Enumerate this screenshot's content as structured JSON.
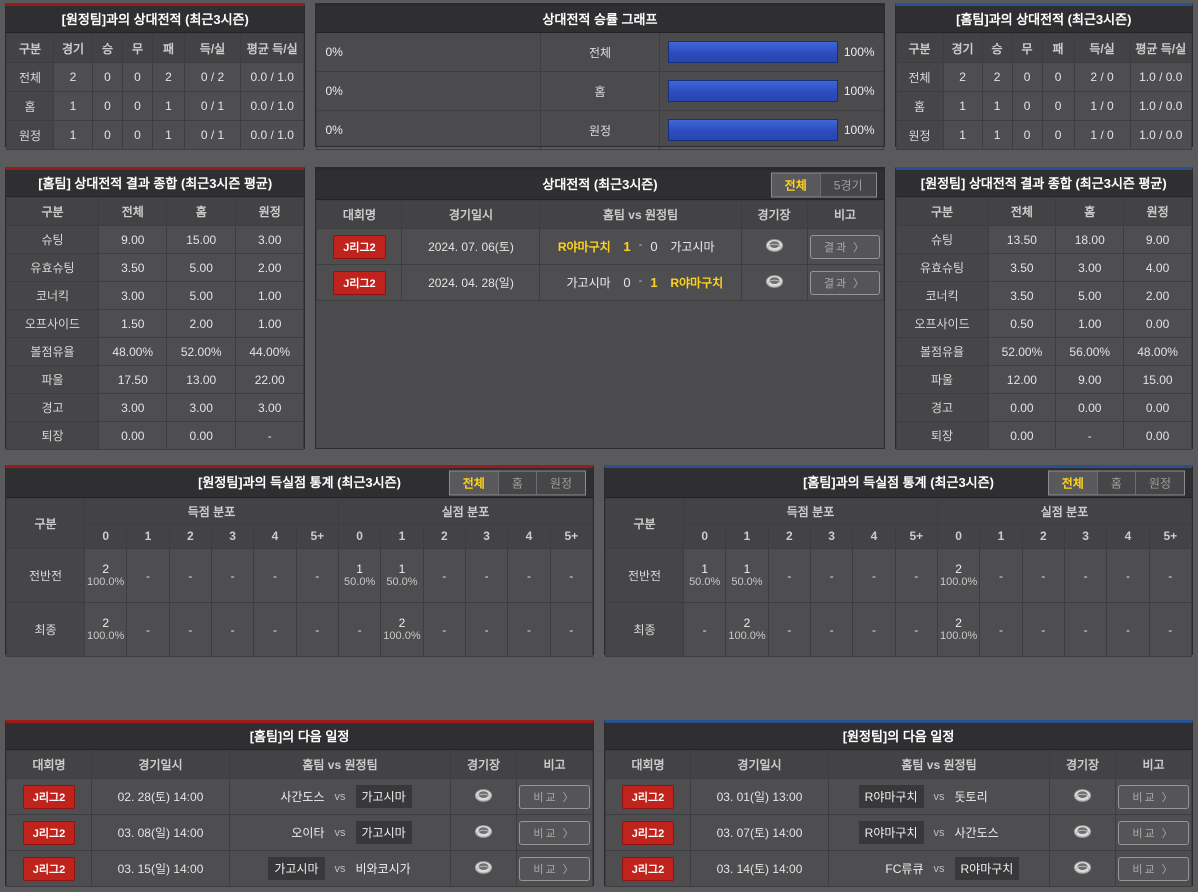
{
  "colors": {
    "accent_red": "#9b1b1b",
    "accent_blue": "#29508f",
    "bar_blue": "#2c4cbe",
    "highlight_yellow": "#ffd21e",
    "badge_red": "#c0231c"
  },
  "record_vs_away": {
    "title": "[원정팀]과의 상대전적 (최근3시즌)",
    "columns": [
      "구분",
      "경기",
      "승",
      "무",
      "패",
      "득/실",
      "평균 득/실"
    ],
    "rows": [
      {
        "label": "전체",
        "values": [
          "2",
          "0",
          "0",
          "2",
          "0 / 2",
          "0.0 / 1.0"
        ]
      },
      {
        "label": "홈",
        "values": [
          "1",
          "0",
          "0",
          "1",
          "0 / 1",
          "0.0 / 1.0"
        ]
      },
      {
        "label": "원정",
        "values": [
          "1",
          "0",
          "0",
          "1",
          "0 / 1",
          "0.0 / 1.0"
        ]
      }
    ]
  },
  "win_graph": {
    "title": "상대전적 승률 그래프",
    "rows": [
      {
        "label": "전체",
        "left_pct": "0%",
        "left_value": 0,
        "right_pct": "100%",
        "right_value": 100
      },
      {
        "label": "홈",
        "left_pct": "0%",
        "left_value": 0,
        "right_pct": "100%",
        "right_value": 100
      },
      {
        "label": "원정",
        "left_pct": "0%",
        "left_value": 0,
        "right_pct": "100%",
        "right_value": 100
      }
    ]
  },
  "record_vs_home": {
    "title": "[홈팀]과의 상대전적 (최근3시즌)",
    "columns": [
      "구분",
      "경기",
      "승",
      "무",
      "패",
      "득/실",
      "평균 득/실"
    ],
    "rows": [
      {
        "label": "전체",
        "values": [
          "2",
          "2",
          "0",
          "0",
          "2 / 0",
          "1.0 / 0.0"
        ]
      },
      {
        "label": "홈",
        "values": [
          "1",
          "1",
          "0",
          "0",
          "1 / 0",
          "1.0 / 0.0"
        ]
      },
      {
        "label": "원정",
        "values": [
          "1",
          "1",
          "0",
          "0",
          "1 / 0",
          "1.0 / 0.0"
        ]
      }
    ]
  },
  "summary_home": {
    "title": "[홈팀] 상대전적 결과 종합 (최근3시즌 평균)",
    "columns": [
      "구분",
      "전체",
      "홈",
      "원정"
    ],
    "rows": [
      {
        "label": "슈팅",
        "values": [
          "9.00",
          "15.00",
          "3.00"
        ]
      },
      {
        "label": "유효슈팅",
        "values": [
          "3.50",
          "5.00",
          "2.00"
        ]
      },
      {
        "label": "코너킥",
        "values": [
          "3.00",
          "5.00",
          "1.00"
        ]
      },
      {
        "label": "오프사이드",
        "values": [
          "1.50",
          "2.00",
          "1.00"
        ]
      },
      {
        "label": "볼점유율",
        "values": [
          "48.00%",
          "52.00%",
          "44.00%"
        ]
      },
      {
        "label": "파울",
        "values": [
          "17.50",
          "13.00",
          "22.00"
        ]
      },
      {
        "label": "경고",
        "values": [
          "3.00",
          "3.00",
          "3.00"
        ]
      },
      {
        "label": "퇴장",
        "values": [
          "0.00",
          "0.00",
          "-"
        ]
      }
    ]
  },
  "match_history": {
    "title": "상대전적 (최근3시즌)",
    "tabs": [
      {
        "label": "전체",
        "name": "all",
        "active": true
      },
      {
        "label": "5경기",
        "name": "5games",
        "active": false
      }
    ],
    "columns": [
      "대회명",
      "경기일시",
      "홈팀  vs  원정팀",
      "경기장",
      "비고"
    ],
    "score_sep": "-",
    "button_label": "결과 〉",
    "rows": [
      {
        "league": "J리그2",
        "date": "2024. 07. 06(토)",
        "home": "R야마구치",
        "home_win": true,
        "score_home": "1",
        "score_away": "0",
        "away": "가고시마",
        "away_win": false
      },
      {
        "league": "J리그2",
        "date": "2024. 04. 28(일)",
        "home": "가고시마",
        "home_win": false,
        "score_home": "0",
        "score_away": "1",
        "away": "R야마구치",
        "away_win": true
      }
    ]
  },
  "summary_away": {
    "title": "[원정팀] 상대전적 결과 종합 (최근3시즌 평균)",
    "columns": [
      "구분",
      "전체",
      "홈",
      "원정"
    ],
    "rows": [
      {
        "label": "슈팅",
        "values": [
          "13.50",
          "18.00",
          "9.00"
        ]
      },
      {
        "label": "유효슈팅",
        "values": [
          "3.50",
          "3.00",
          "4.00"
        ]
      },
      {
        "label": "코너킥",
        "values": [
          "3.50",
          "5.00",
          "2.00"
        ]
      },
      {
        "label": "오프사이드",
        "values": [
          "0.50",
          "1.00",
          "0.00"
        ]
      },
      {
        "label": "볼점유율",
        "values": [
          "52.00%",
          "56.00%",
          "48.00%"
        ]
      },
      {
        "label": "파울",
        "values": [
          "12.00",
          "9.00",
          "15.00"
        ]
      },
      {
        "label": "경고",
        "values": [
          "0.00",
          "0.00",
          "0.00"
        ]
      },
      {
        "label": "퇴장",
        "values": [
          "0.00",
          "-",
          "0.00"
        ]
      }
    ]
  },
  "goal_stats_away": {
    "title": "[원정팀]과의 득실점 통계 (최근3시즌)",
    "tabs": [
      {
        "label": "전체",
        "name": "all",
        "active": true
      },
      {
        "label": "홈",
        "name": "home",
        "active": false
      },
      {
        "label": "원정",
        "name": "away",
        "active": false
      }
    ],
    "group_label": "구분",
    "scored_label": "득점 분포",
    "conceded_label": "실점 분포",
    "bins": [
      "0",
      "1",
      "2",
      "3",
      "4",
      "5+"
    ],
    "rows": [
      {
        "label": "전반전",
        "scored": [
          {
            "n": "2",
            "pct": "100.0%"
          },
          null,
          null,
          null,
          null,
          null
        ],
        "conceded": [
          {
            "n": "1",
            "pct": "50.0%"
          },
          {
            "n": "1",
            "pct": "50.0%"
          },
          null,
          null,
          null,
          null
        ]
      },
      {
        "label": "최종",
        "scored": [
          {
            "n": "2",
            "pct": "100.0%"
          },
          null,
          null,
          null,
          null,
          null
        ],
        "conceded": [
          null,
          {
            "n": "2",
            "pct": "100.0%"
          },
          null,
          null,
          null,
          null
        ]
      }
    ]
  },
  "goal_stats_home": {
    "title": "[홈팀]과의 득실점 통계 (최근3시즌)",
    "tabs": [
      {
        "label": "전체",
        "name": "all",
        "active": true
      },
      {
        "label": "홈",
        "name": "home",
        "active": false
      },
      {
        "label": "원정",
        "name": "away",
        "active": false
      }
    ],
    "group_label": "구분",
    "scored_label": "득점 분포",
    "conceded_label": "실점 분포",
    "bins": [
      "0",
      "1",
      "2",
      "3",
      "4",
      "5+"
    ],
    "rows": [
      {
        "label": "전반전",
        "scored": [
          {
            "n": "1",
            "pct": "50.0%"
          },
          {
            "n": "1",
            "pct": "50.0%"
          },
          null,
          null,
          null,
          null
        ],
        "conceded": [
          {
            "n": "2",
            "pct": "100.0%"
          },
          null,
          null,
          null,
          null,
          null
        ]
      },
      {
        "label": "최종",
        "scored": [
          null,
          {
            "n": "2",
            "pct": "100.0%"
          },
          null,
          null,
          null,
          null
        ],
        "conceded": [
          {
            "n": "2",
            "pct": "100.0%"
          },
          null,
          null,
          null,
          null,
          null
        ]
      }
    ]
  },
  "schedule_home": {
    "title": "[홈팀]의 다음 일정",
    "columns": [
      "대회명",
      "경기일시",
      "홈팀  vs  원정팀",
      "경기장",
      "비고"
    ],
    "vs_label": "vs",
    "button_label": "비교 〉",
    "rows": [
      {
        "league": "J리그2",
        "date": "02. 28(토) 14:00",
        "home": "사간도스",
        "away": "가고시마",
        "highlight": "away"
      },
      {
        "league": "J리그2",
        "date": "03. 08(일) 14:00",
        "home": "오이타",
        "away": "가고시마",
        "highlight": "away"
      },
      {
        "league": "J리그2",
        "date": "03. 15(일) 14:00",
        "home": "가고시마",
        "away": "비와코시가",
        "highlight": "home"
      }
    ]
  },
  "schedule_away": {
    "title": "[원정팀]의 다음 일정",
    "columns": [
      "대회명",
      "경기일시",
      "홈팀  vs  원정팀",
      "경기장",
      "비고"
    ],
    "vs_label": "vs",
    "button_label": "비교 〉",
    "rows": [
      {
        "league": "J리그2",
        "date": "03. 01(일) 13:00",
        "home": "R야마구치",
        "away": "돗토리",
        "highlight": "home"
      },
      {
        "league": "J리그2",
        "date": "03. 07(토) 14:00",
        "home": "R야마구치",
        "away": "사간도스",
        "highlight": "home"
      },
      {
        "league": "J리그2",
        "date": "03. 14(토) 14:00",
        "home": "FC류큐",
        "away": "R야마구치",
        "highlight": "away"
      }
    ]
  }
}
